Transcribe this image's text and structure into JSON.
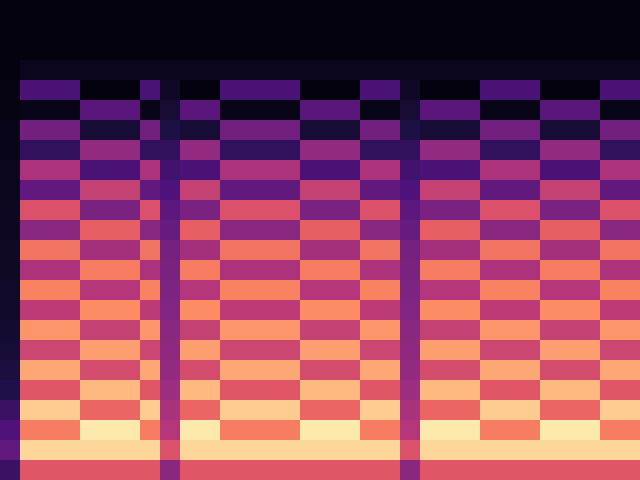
{
  "chart_data": {
    "type": "heatmap",
    "tick_labels": false,
    "color_range": [
      0,
      1
    ],
    "cells": [
      [
        0.02,
        0.02,
        0.02,
        0.02,
        0.02,
        0.02,
        0.02,
        0.02,
        0.02,
        0.02,
        0.02,
        0.02,
        0.02,
        0.02,
        0.02,
        0.02,
        0.02,
        0.02,
        0.02,
        0.02,
        0.02,
        0.02,
        0.02,
        0.02,
        0.02,
        0.02,
        0.02,
        0.02,
        0.02,
        0.02,
        0.02,
        0.02
      ],
      [
        0.02,
        0.02,
        0.02,
        0.02,
        0.02,
        0.02,
        0.02,
        0.02,
        0.02,
        0.02,
        0.02,
        0.02,
        0.02,
        0.02,
        0.02,
        0.02,
        0.02,
        0.02,
        0.02,
        0.02,
        0.02,
        0.02,
        0.02,
        0.02,
        0.02,
        0.02,
        0.02,
        0.02,
        0.02,
        0.02,
        0.02,
        0.02
      ],
      [
        0.02,
        0.02,
        0.02,
        0.02,
        0.02,
        0.02,
        0.02,
        0.02,
        0.02,
        0.02,
        0.02,
        0.02,
        0.02,
        0.02,
        0.02,
        0.02,
        0.02,
        0.02,
        0.02,
        0.02,
        0.02,
        0.02,
        0.02,
        0.02,
        0.02,
        0.02,
        0.02,
        0.02,
        0.02,
        0.02,
        0.02,
        0.02
      ],
      [
        0.02,
        0.05,
        0.05,
        0.05,
        0.05,
        0.05,
        0.05,
        0.05,
        0.05,
        0.05,
        0.05,
        0.05,
        0.05,
        0.05,
        0.05,
        0.05,
        0.05,
        0.05,
        0.05,
        0.05,
        0.05,
        0.05,
        0.05,
        0.05,
        0.05,
        0.05,
        0.05,
        0.05,
        0.05,
        0.05,
        0.05,
        0.05
      ],
      [
        0.03,
        0.24,
        0.24,
        0.24,
        0.02,
        0.02,
        0.02,
        0.24,
        0.07,
        0.02,
        0.02,
        0.24,
        0.24,
        0.24,
        0.24,
        0.02,
        0.02,
        0.02,
        0.24,
        0.24,
        0.07,
        0.02,
        0.02,
        0.02,
        0.24,
        0.24,
        0.24,
        0.02,
        0.02,
        0.02,
        0.24,
        0.24
      ],
      [
        0.03,
        0.04,
        0.04,
        0.04,
        0.28,
        0.28,
        0.28,
        0.04,
        0.1,
        0.28,
        0.28,
        0.04,
        0.04,
        0.04,
        0.04,
        0.28,
        0.28,
        0.28,
        0.04,
        0.04,
        0.1,
        0.28,
        0.28,
        0.28,
        0.04,
        0.04,
        0.04,
        0.28,
        0.28,
        0.28,
        0.04,
        0.04
      ],
      [
        0.04,
        0.34,
        0.34,
        0.34,
        0.1,
        0.1,
        0.1,
        0.34,
        0.13,
        0.1,
        0.1,
        0.34,
        0.34,
        0.34,
        0.34,
        0.1,
        0.1,
        0.1,
        0.34,
        0.34,
        0.13,
        0.1,
        0.1,
        0.1,
        0.34,
        0.34,
        0.34,
        0.1,
        0.1,
        0.1,
        0.34,
        0.34
      ],
      [
        0.04,
        0.18,
        0.18,
        0.18,
        0.42,
        0.42,
        0.42,
        0.18,
        0.18,
        0.42,
        0.42,
        0.18,
        0.18,
        0.18,
        0.18,
        0.42,
        0.42,
        0.42,
        0.18,
        0.18,
        0.18,
        0.42,
        0.42,
        0.42,
        0.18,
        0.18,
        0.18,
        0.42,
        0.42,
        0.42,
        0.18,
        0.18
      ],
      [
        0.05,
        0.48,
        0.48,
        0.48,
        0.24,
        0.24,
        0.24,
        0.48,
        0.22,
        0.24,
        0.24,
        0.48,
        0.48,
        0.48,
        0.48,
        0.24,
        0.24,
        0.24,
        0.48,
        0.48,
        0.22,
        0.24,
        0.24,
        0.24,
        0.48,
        0.48,
        0.48,
        0.24,
        0.24,
        0.24,
        0.48,
        0.48
      ],
      [
        0.05,
        0.3,
        0.3,
        0.3,
        0.54,
        0.54,
        0.54,
        0.3,
        0.25,
        0.54,
        0.54,
        0.3,
        0.3,
        0.3,
        0.3,
        0.54,
        0.54,
        0.54,
        0.3,
        0.3,
        0.25,
        0.54,
        0.54,
        0.54,
        0.3,
        0.3,
        0.3,
        0.54,
        0.54,
        0.54,
        0.3,
        0.3
      ],
      [
        0.06,
        0.6,
        0.6,
        0.6,
        0.36,
        0.36,
        0.36,
        0.6,
        0.29,
        0.36,
        0.36,
        0.6,
        0.6,
        0.6,
        0.6,
        0.36,
        0.36,
        0.36,
        0.6,
        0.6,
        0.29,
        0.36,
        0.36,
        0.36,
        0.6,
        0.6,
        0.6,
        0.36,
        0.36,
        0.36,
        0.6,
        0.6
      ],
      [
        0.06,
        0.4,
        0.4,
        0.4,
        0.64,
        0.64,
        0.64,
        0.4,
        0.31,
        0.64,
        0.64,
        0.4,
        0.4,
        0.4,
        0.4,
        0.64,
        0.64,
        0.64,
        0.4,
        0.4,
        0.31,
        0.64,
        0.64,
        0.64,
        0.4,
        0.4,
        0.4,
        0.64,
        0.64,
        0.64,
        0.4,
        0.4
      ],
      [
        0.07,
        0.7,
        0.7,
        0.7,
        0.46,
        0.46,
        0.46,
        0.7,
        0.35,
        0.46,
        0.46,
        0.7,
        0.7,
        0.7,
        0.7,
        0.46,
        0.46,
        0.46,
        0.7,
        0.7,
        0.35,
        0.46,
        0.46,
        0.46,
        0.7,
        0.7,
        0.7,
        0.46,
        0.46,
        0.46,
        0.7,
        0.7
      ],
      [
        0.07,
        0.48,
        0.48,
        0.48,
        0.72,
        0.72,
        0.72,
        0.48,
        0.36,
        0.72,
        0.72,
        0.48,
        0.48,
        0.48,
        0.48,
        0.72,
        0.72,
        0.72,
        0.48,
        0.48,
        0.36,
        0.72,
        0.72,
        0.72,
        0.48,
        0.48,
        0.48,
        0.72,
        0.72,
        0.72,
        0.48,
        0.48
      ],
      [
        0.08,
        0.74,
        0.74,
        0.74,
        0.5,
        0.5,
        0.5,
        0.74,
        0.37,
        0.5,
        0.5,
        0.74,
        0.74,
        0.74,
        0.74,
        0.5,
        0.5,
        0.5,
        0.74,
        0.74,
        0.37,
        0.5,
        0.5,
        0.5,
        0.74,
        0.74,
        0.74,
        0.5,
        0.5,
        0.5,
        0.74,
        0.74
      ],
      [
        0.08,
        0.52,
        0.52,
        0.52,
        0.76,
        0.76,
        0.76,
        0.52,
        0.38,
        0.76,
        0.76,
        0.52,
        0.52,
        0.52,
        0.52,
        0.76,
        0.76,
        0.76,
        0.52,
        0.52,
        0.38,
        0.76,
        0.76,
        0.76,
        0.52,
        0.52,
        0.52,
        0.76,
        0.76,
        0.76,
        0.52,
        0.52
      ],
      [
        0.09,
        0.78,
        0.78,
        0.78,
        0.54,
        0.54,
        0.54,
        0.78,
        0.4,
        0.54,
        0.54,
        0.78,
        0.78,
        0.78,
        0.78,
        0.54,
        0.54,
        0.54,
        0.78,
        0.78,
        0.4,
        0.54,
        0.54,
        0.54,
        0.78,
        0.78,
        0.78,
        0.54,
        0.54,
        0.54,
        0.78,
        0.78
      ],
      [
        0.1,
        0.56,
        0.56,
        0.56,
        0.8,
        0.8,
        0.8,
        0.56,
        0.41,
        0.8,
        0.8,
        0.56,
        0.56,
        0.56,
        0.56,
        0.8,
        0.8,
        0.8,
        0.56,
        0.56,
        0.41,
        0.8,
        0.8,
        0.8,
        0.56,
        0.56,
        0.56,
        0.8,
        0.8,
        0.8,
        0.56,
        0.56
      ],
      [
        0.12,
        0.82,
        0.82,
        0.82,
        0.58,
        0.58,
        0.58,
        0.82,
        0.42,
        0.58,
        0.58,
        0.82,
        0.82,
        0.82,
        0.82,
        0.58,
        0.58,
        0.58,
        0.82,
        0.82,
        0.42,
        0.58,
        0.58,
        0.58,
        0.82,
        0.82,
        0.82,
        0.58,
        0.58,
        0.58,
        0.82,
        0.82
      ],
      [
        0.14,
        0.62,
        0.62,
        0.62,
        0.86,
        0.86,
        0.86,
        0.62,
        0.44,
        0.86,
        0.86,
        0.62,
        0.62,
        0.62,
        0.62,
        0.86,
        0.86,
        0.86,
        0.62,
        0.62,
        0.44,
        0.86,
        0.86,
        0.86,
        0.62,
        0.62,
        0.62,
        0.86,
        0.86,
        0.86,
        0.62,
        0.62
      ],
      [
        0.2,
        0.9,
        0.9,
        0.9,
        0.66,
        0.66,
        0.66,
        0.9,
        0.47,
        0.66,
        0.66,
        0.9,
        0.9,
        0.9,
        0.9,
        0.66,
        0.66,
        0.66,
        0.9,
        0.9,
        0.47,
        0.66,
        0.66,
        0.66,
        0.9,
        0.9,
        0.9,
        0.66,
        0.66,
        0.66,
        0.9,
        0.9
      ],
      [
        0.25,
        0.72,
        0.72,
        0.72,
        0.96,
        0.96,
        0.96,
        0.72,
        0.5,
        0.96,
        0.96,
        0.72,
        0.72,
        0.72,
        0.72,
        0.96,
        0.96,
        0.96,
        0.72,
        0.72,
        0.5,
        0.96,
        0.96,
        0.96,
        0.72,
        0.72,
        0.72,
        0.96,
        0.96,
        0.96,
        0.72,
        0.72
      ],
      [
        0.3,
        0.92,
        0.92,
        0.92,
        0.92,
        0.92,
        0.92,
        0.92,
        0.6,
        0.92,
        0.92,
        0.92,
        0.92,
        0.92,
        0.92,
        0.92,
        0.92,
        0.92,
        0.92,
        0.92,
        0.6,
        0.92,
        0.92,
        0.92,
        0.92,
        0.92,
        0.92,
        0.92,
        0.92,
        0.92,
        0.92,
        0.92
      ],
      [
        0.2,
        0.62,
        0.62,
        0.62,
        0.62,
        0.62,
        0.62,
        0.62,
        0.4,
        0.62,
        0.62,
        0.62,
        0.62,
        0.62,
        0.62,
        0.62,
        0.62,
        0.62,
        0.62,
        0.62,
        0.4,
        0.62,
        0.62,
        0.62,
        0.62,
        0.62,
        0.62,
        0.62,
        0.62,
        0.62,
        0.62,
        0.62
      ]
    ]
  }
}
